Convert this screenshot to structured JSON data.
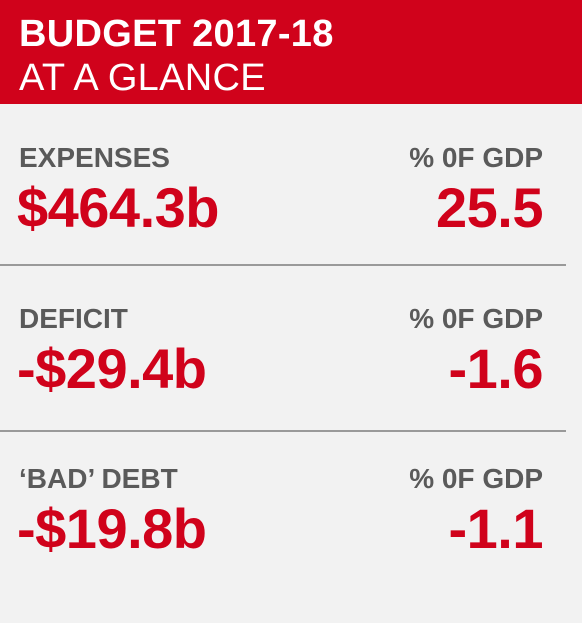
{
  "header": {
    "title": "BUDGET 2017-18",
    "subtitle": "AT A GLANCE"
  },
  "rows": [
    {
      "label": "EXPENSES",
      "pct_label": "% 0F GDP",
      "value": "$464.3b",
      "pct_value": "25.5"
    },
    {
      "label": "DEFICIT",
      "pct_label": "% 0F GDP",
      "value": "-$29.4b",
      "pct_value": "-1.6"
    },
    {
      "label": "‘BAD’ DEBT",
      "pct_label": "% 0F GDP",
      "value": "-$19.8b",
      "pct_value": "-1.1"
    }
  ],
  "colors": {
    "accent": "#d0021b",
    "label": "#5a5a5a",
    "background": "#f2f2f2",
    "divider": "#9a9a9a"
  }
}
